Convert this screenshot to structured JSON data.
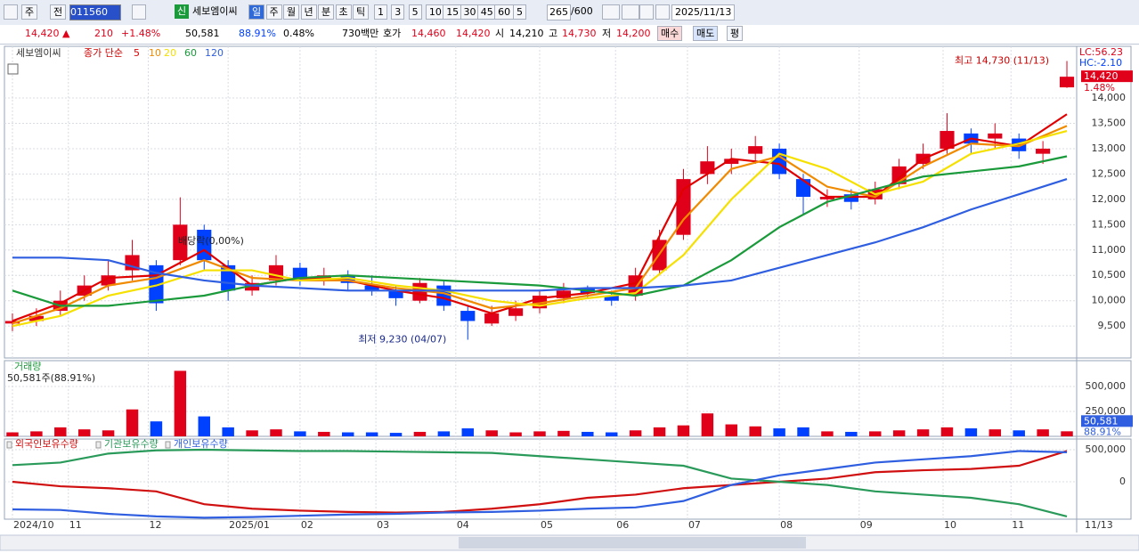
{
  "toolbar": {
    "market": "주",
    "prev": "전",
    "code": "011560",
    "new": "신",
    "name": "세보엠이씨",
    "periods": [
      "일",
      "주",
      "월",
      "년",
      "분",
      "초",
      "틱"
    ],
    "nums": [
      "1",
      "3",
      "5",
      "10",
      "15",
      "30",
      "45",
      "60"
    ],
    "count": "5",
    "range": "265",
    "range_max": "/600",
    "date": "2025/11/13"
  },
  "quote": {
    "price": "14,420 ▲",
    "change": "210",
    "change_pct": "+1.48%",
    "volume": "50,581",
    "volume_pct": "88.91%",
    "turnover": "0.48%",
    "amount": "730백만",
    "ask_label": "호가",
    "ask": "14,460",
    "bid": "14,420",
    "open_label": "시",
    "open": "14,210",
    "high_label": "고",
    "high": "14,730",
    "low_label": "저",
    "low": "14,200",
    "buy": "매수",
    "sell": "매도",
    "avg": "평"
  },
  "chart_data": [
    {
      "type": "candlestick",
      "name": "세보엠이씨",
      "ma_label": "종가 단순",
      "lc": "LC:56.23",
      "hc": "HC:-2.10",
      "last_label": "14,420",
      "last_change": "1.48%",
      "annotations": [
        "최고 14,730 (11/13)",
        "최저 9,230 (04/07)",
        "배당락(0,00%)"
      ],
      "xlim": [
        -2,
        266
      ],
      "ylim": [
        8870,
        15020
      ],
      "yticks": [
        {
          "value": 9500,
          "label": "9,500"
        },
        {
          "value": 10000,
          "label": "10,000"
        },
        {
          "value": 10500,
          "label": "10,500"
        },
        {
          "value": 11000,
          "label": "11,000"
        },
        {
          "value": 11500,
          "label": "11,500"
        },
        {
          "value": 12000,
          "label": "12,000"
        },
        {
          "value": 12500,
          "label": "12,500"
        },
        {
          "value": 13000,
          "label": "13,000"
        },
        {
          "value": 13500,
          "label": "13,500"
        },
        {
          "value": 14000,
          "label": "14,000"
        }
      ],
      "xticks": [
        {
          "value": 0,
          "label": "2024/10"
        },
        {
          "value": 14,
          "label": "11"
        },
        {
          "value": 34,
          "label": "12"
        },
        {
          "value": 54,
          "label": "2025/01"
        },
        {
          "value": 72,
          "label": "02"
        },
        {
          "value": 91,
          "label": "03"
        },
        {
          "value": 111,
          "label": "04"
        },
        {
          "value": 132,
          "label": "05"
        },
        {
          "value": 151,
          "label": "06"
        },
        {
          "value": 169,
          "label": "07"
        },
        {
          "value": 192,
          "label": "08"
        },
        {
          "value": 212,
          "label": "09"
        },
        {
          "value": 233,
          "label": "10"
        },
        {
          "value": 250,
          "label": "11"
        }
      ],
      "last_date": "11/13",
      "grid": true,
      "up_color": "#e0001a",
      "down_color": "#0040ff",
      "x": [
        0,
        6,
        12,
        18,
        24,
        30,
        36,
        42,
        48,
        54,
        60,
        66,
        72,
        78,
        84,
        90,
        96,
        102,
        108,
        114,
        120,
        126,
        132,
        138,
        144,
        150,
        156,
        162,
        168,
        174,
        180,
        186,
        192,
        198,
        204,
        210,
        216,
        222,
        228,
        234,
        240,
        246,
        252,
        258,
        264
      ],
      "open": [
        9550,
        9600,
        9800,
        10100,
        10300,
        10600,
        10700,
        10800,
        11400,
        10700,
        10200,
        10400,
        10650,
        10400,
        10500,
        10300,
        10200,
        10000,
        10300,
        9800,
        9550,
        9700,
        9850,
        10050,
        10250,
        10100,
        10100,
        10600,
        11300,
        12500,
        12700,
        12900,
        13000,
        12400,
        12000,
        12100,
        12000,
        12300,
        12700,
        13000,
        13300,
        13200,
        13200,
        12900,
        14210
      ],
      "high": [
        9750,
        9850,
        10200,
        10500,
        10800,
        11200,
        10800,
        12040,
        11500,
        10800,
        10500,
        10900,
        10750,
        10650,
        10600,
        10500,
        10300,
        10450,
        10400,
        9900,
        9900,
        10000,
        10200,
        10350,
        10300,
        10200,
        10650,
        11400,
        12600,
        13050,
        13000,
        13250,
        13100,
        12500,
        12200,
        12200,
        12350,
        12800,
        13100,
        13700,
        13400,
        13500,
        13300,
        13150,
        14730
      ],
      "low": [
        9400,
        9500,
        9700,
        10000,
        10200,
        10400,
        9800,
        10700,
        10600,
        10000,
        10100,
        10300,
        10300,
        10300,
        10200,
        10100,
        9900,
        9950,
        9800,
        9230,
        9500,
        9600,
        9750,
        9950,
        10050,
        9900,
        10000,
        10500,
        11200,
        12300,
        12500,
        12700,
        12400,
        11700,
        11850,
        11800,
        11900,
        12200,
        12600,
        12900,
        12900,
        13000,
        12800,
        12700,
        14200
      ],
      "close": [
        9600,
        9700,
        10000,
        10300,
        10500,
        10900,
        9950,
        11500,
        10800,
        10200,
        10350,
        10700,
        10400,
        10500,
        10350,
        10200,
        10050,
        10350,
        9900,
        9600,
        9750,
        9850,
        10100,
        10200,
        10150,
        10000,
        10500,
        11200,
        12400,
        12750,
        12800,
        13050,
        12500,
        12050,
        12050,
        11950,
        12200,
        12650,
        12900,
        13350,
        13100,
        13300,
        12950,
        13000,
        14420
      ],
      "series": [
        {
          "name": "5",
          "color": "#e00000",
          "x": [
            0,
            12,
            24,
            36,
            48,
            60,
            72,
            84,
            96,
            108,
            120,
            132,
            144,
            156,
            168,
            180,
            192,
            204,
            216,
            228,
            240,
            252,
            264
          ],
          "values": [
            9600,
            9950,
            10450,
            10500,
            11000,
            10300,
            10450,
            10400,
            10200,
            10050,
            9750,
            10050,
            10150,
            10350,
            12200,
            12800,
            12700,
            12050,
            12050,
            12800,
            13200,
            13050,
            13680
          ]
        },
        {
          "name": "10",
          "color": "#f08a00",
          "x": [
            0,
            12,
            24,
            36,
            48,
            60,
            72,
            84,
            96,
            108,
            120,
            132,
            144,
            156,
            168,
            180,
            192,
            204,
            216,
            228,
            240,
            252,
            264
          ],
          "values": [
            9550,
            9850,
            10300,
            10450,
            10800,
            10450,
            10400,
            10400,
            10250,
            10150,
            9850,
            9950,
            10100,
            10250,
            11600,
            12600,
            12850,
            12250,
            12050,
            12650,
            13100,
            13050,
            13450
          ]
        },
        {
          "name": "20",
          "color": "#f5e000",
          "x": [
            0,
            12,
            24,
            36,
            48,
            60,
            72,
            84,
            96,
            108,
            120,
            132,
            144,
            156,
            168,
            180,
            192,
            204,
            216,
            228,
            240,
            252,
            264
          ],
          "values": [
            9500,
            9700,
            10100,
            10300,
            10600,
            10600,
            10400,
            10450,
            10300,
            10200,
            10000,
            9900,
            10050,
            10150,
            10900,
            12000,
            12900,
            12600,
            12100,
            12350,
            12900,
            13100,
            13350
          ]
        },
        {
          "name": "60",
          "color": "#1a9a3a",
          "x": [
            0,
            12,
            24,
            36,
            48,
            60,
            72,
            84,
            96,
            108,
            120,
            132,
            144,
            156,
            168,
            180,
            192,
            204,
            216,
            228,
            240,
            252,
            264
          ],
          "values": [
            10200,
            9900,
            9900,
            10000,
            10100,
            10300,
            10450,
            10500,
            10450,
            10400,
            10350,
            10300,
            10200,
            10100,
            10300,
            10800,
            11450,
            11950,
            12200,
            12450,
            12550,
            12650,
            12850
          ]
        },
        {
          "name": "120",
          "color": "#2f5fe0",
          "x": [
            0,
            12,
            24,
            36,
            48,
            60,
            72,
            84,
            96,
            108,
            120,
            132,
            144,
            156,
            168,
            180,
            192,
            204,
            216,
            228,
            240,
            252,
            264
          ],
          "values": [
            10850,
            10850,
            10800,
            10550,
            10400,
            10300,
            10250,
            10200,
            10200,
            10200,
            10200,
            10200,
            10250,
            10250,
            10300,
            10400,
            10650,
            10900,
            11150,
            11450,
            11800,
            12100,
            12400
          ]
        }
      ]
    },
    {
      "type": "bar",
      "title": "거래량",
      "status": "50,581주(88.91%)",
      "last_label": "50,581",
      "last_pct": "88.91%",
      "xlim": [
        -2,
        266
      ],
      "ylim": [
        0,
        759000
      ],
      "yticks": [
        {
          "value": 250000,
          "label": "250,000"
        },
        {
          "value": 500000,
          "label": "500,000"
        }
      ],
      "x": [
        0,
        6,
        12,
        18,
        24,
        30,
        36,
        42,
        48,
        54,
        60,
        66,
        72,
        78,
        84,
        90,
        96,
        102,
        108,
        114,
        120,
        126,
        132,
        138,
        144,
        150,
        156,
        162,
        168,
        174,
        180,
        186,
        192,
        198,
        204,
        210,
        216,
        222,
        228,
        234,
        240,
        246,
        252,
        258,
        264
      ],
      "values": [
        40000,
        50000,
        90000,
        70000,
        60000,
        270000,
        150000,
        657000,
        200000,
        90000,
        60000,
        70000,
        50000,
        45000,
        40000,
        40000,
        35000,
        45000,
        50000,
        80000,
        60000,
        40000,
        50000,
        55000,
        45000,
        40000,
        60000,
        90000,
        110000,
        230000,
        120000,
        100000,
        80000,
        90000,
        50000,
        45000,
        50000,
        60000,
        70000,
        90000,
        80000,
        70000,
        60000,
        70000,
        50581
      ]
    },
    {
      "type": "line",
      "xlim": [
        -2,
        266
      ],
      "ylim": [
        -583000,
        667000
      ],
      "yticks": [
        {
          "value": 500000,
          "label": "500,000"
        },
        0
      ],
      "series": [
        {
          "name": "외국인보유수량",
          "color": "#d01010",
          "x": [
            0,
            12,
            24,
            36,
            48,
            60,
            72,
            84,
            96,
            108,
            120,
            132,
            144,
            156,
            168,
            180,
            192,
            204,
            216,
            228,
            240,
            252,
            264
          ],
          "values": [
            0,
            -70000,
            -100000,
            -150000,
            -350000,
            -420000,
            -450000,
            -470000,
            -480000,
            -470000,
            -420000,
            -350000,
            -250000,
            -200000,
            -100000,
            -50000,
            0,
            50000,
            150000,
            180000,
            200000,
            250000,
            480000
          ]
        },
        {
          "name": "기관보유수량",
          "color": "#2a9a5a",
          "x": [
            0,
            12,
            24,
            36,
            48,
            60,
            72,
            84,
            96,
            108,
            120,
            132,
            144,
            156,
            168,
            180,
            192,
            204,
            216,
            228,
            240,
            252,
            264
          ],
          "values": [
            260000,
            300000,
            440000,
            490000,
            500000,
            490000,
            480000,
            480000,
            470000,
            460000,
            450000,
            400000,
            350000,
            300000,
            250000,
            50000,
            0,
            -50000,
            -150000,
            -200000,
            -250000,
            -350000,
            -540000
          ]
        },
        {
          "name": "개인보유수량",
          "color": "#2f5fe0",
          "x": [
            0,
            12,
            24,
            36,
            48,
            60,
            72,
            84,
            96,
            108,
            120,
            132,
            144,
            156,
            168,
            180,
            192,
            204,
            216,
            228,
            240,
            252,
            264
          ],
          "values": [
            -430000,
            -440000,
            -500000,
            -540000,
            -560000,
            -550000,
            -530000,
            -510000,
            -500000,
            -480000,
            -470000,
            -450000,
            -420000,
            -400000,
            -300000,
            -50000,
            100000,
            200000,
            300000,
            350000,
            400000,
            480000,
            460000
          ]
        }
      ]
    }
  ]
}
